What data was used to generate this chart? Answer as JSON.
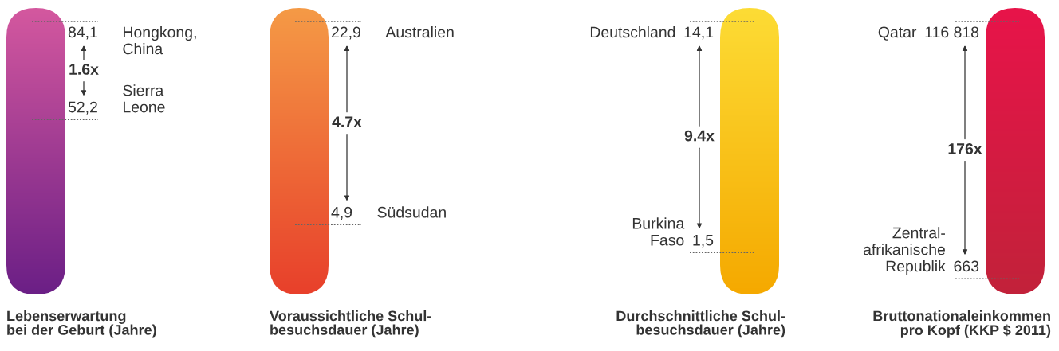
{
  "chart_data": [
    {
      "type": "other",
      "title": "Lebenserwartung\nbei der Geburt (Jahre)",
      "categories": [
        "Hongkong,\nChina",
        "Sierra\nLeone"
      ],
      "values": [
        84.1,
        52.2
      ],
      "value_labels": [
        "84,1",
        "52,2"
      ],
      "colors": [
        "#d4589f",
        "#6b1f86"
      ],
      "annotations": [
        "1.6x"
      ]
    },
    {
      "type": "other",
      "title": "Voraussichtliche Schul-\nbesuchsdauer (Jahre)",
      "categories": [
        "Australien",
        "Südsudan"
      ],
      "values": [
        22.9,
        4.9
      ],
      "value_labels": [
        "22,9",
        "4,9"
      ],
      "colors": [
        "#f59a46",
        "#e8402b"
      ],
      "annotations": [
        "4.7x"
      ]
    },
    {
      "type": "other",
      "title": "Durchschnittliche Schul-\nbesuchsdauer (Jahre)",
      "categories": [
        "Deutschland",
        "Burkina\nFaso"
      ],
      "values": [
        14.1,
        1.5
      ],
      "value_labels": [
        "14,1",
        "1,5"
      ],
      "colors": [
        "#fddc35",
        "#f5a900"
      ],
      "annotations": [
        "9.4x"
      ]
    },
    {
      "type": "other",
      "title": "Bruttonationaleinkommen\npro Kopf (KKP $ 2011)",
      "categories": [
        "Qatar",
        "Zentral-\nafrikanische\nRepublik"
      ],
      "values": [
        116818,
        663
      ],
      "value_labels": [
        "116 818",
        "663"
      ],
      "colors": [
        "#e8144a",
        "#c2223a"
      ],
      "annotations": [
        "176x"
      ]
    }
  ]
}
